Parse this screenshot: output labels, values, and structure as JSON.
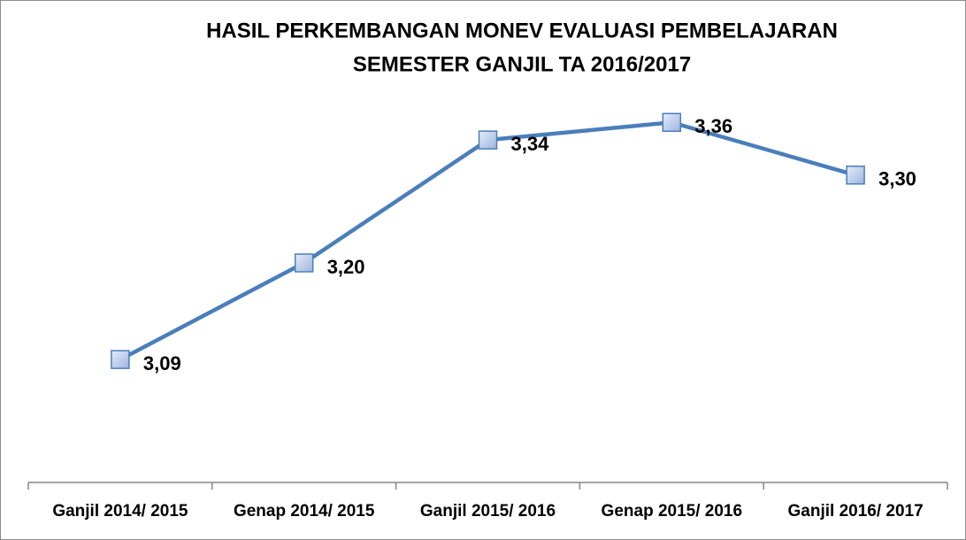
{
  "chart_data": {
    "type": "line",
    "title": [
      "HASIL PERKEMBANGAN MONEV EVALUASI PEMBELAJARAN",
      "SEMESTER GANJIL TA 2016/2017"
    ],
    "categories": [
      "Ganjil 2014/ 2015",
      "Genap 2014/ 2015",
      "Ganjil 2015/ 2016",
      "Genap 2015/ 2016",
      "Ganjil 2016/ 2017"
    ],
    "series": [
      {
        "color": "#4a7ebb",
        "values": [
          3.09,
          3.2,
          3.34,
          3.36,
          3.3
        ],
        "value_labels": [
          "3,09",
          "3,20",
          "3,34",
          "3,36",
          "3,30"
        ]
      }
    ],
    "ylim": [
      2.95,
      3.45
    ]
  }
}
